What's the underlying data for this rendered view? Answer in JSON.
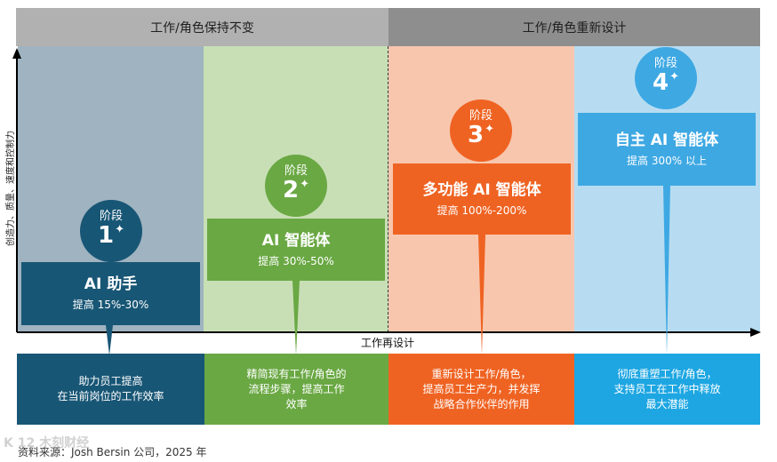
{
  "top_headers": {
    "unchanged": "工作/角色保持不变",
    "redesign": "工作/角色重新设计"
  },
  "y_axis_label": "创造力、质量、速度和控制力",
  "x_axis_label": "工作再设计",
  "stages": [
    {
      "label": "阶段",
      "number": "1",
      "sparkle": "✦",
      "title": "AI 助手",
      "subtitle": "提高 15%-30%",
      "description": [
        "助力员工提高",
        "在当前岗位的工作效率"
      ]
    },
    {
      "label": "阶段",
      "number": "2",
      "sparkle": "✦",
      "title": "AI 智能体",
      "subtitle": "提高 30%-50%",
      "description": [
        "精简现有工作/角色的",
        "流程步骤，提高工作",
        "效率"
      ]
    },
    {
      "label": "阶段",
      "number": "3",
      "sparkle": "✦",
      "title": "多功能 AI 智能体",
      "subtitle": "提高 100%-200%",
      "description": [
        "重新设计工作/角色，",
        "提高员工生产力，并发挥",
        "战略合作伙伴的作用"
      ]
    },
    {
      "label": "阶段",
      "number": "4",
      "sparkle": "✦",
      "title": "自主 AI 智能体",
      "subtitle": "提高 300% 以上",
      "description": [
        "彻底重塑工作/角色，",
        "支持员工在工作中释放",
        "最大潜能"
      ]
    }
  ],
  "source": "资料来源：Josh Bersin 公司，2025 年",
  "watermark": "K 12 木刻财经",
  "colors": {
    "header_unchanged": "#b1b1b1",
    "header_redesign": "#8e8e8e",
    "stage1_bg": "#9fb3c0",
    "stage2_bg": "#c8dfb6",
    "stage3_bg": "#f8c6ad",
    "stage4_bg": "#b7dcf1",
    "stage1": "#185675",
    "stage2": "#6aa843",
    "stage3": "#ef6322",
    "stage4": "#3ea8e3"
  }
}
